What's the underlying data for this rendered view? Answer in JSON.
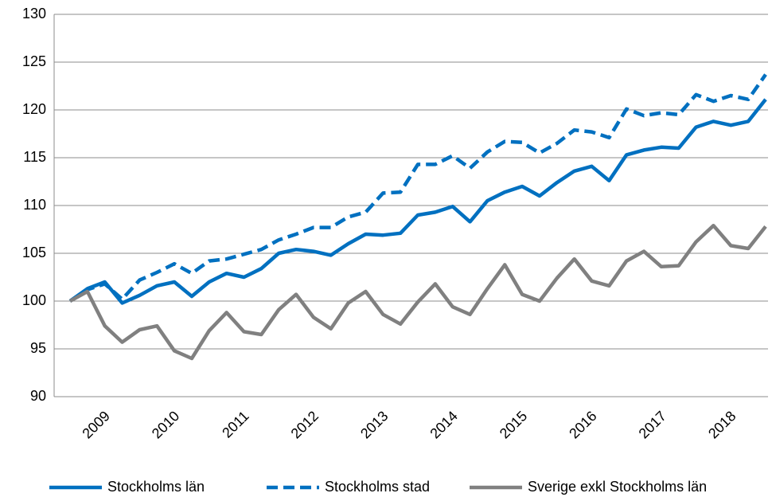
{
  "chart_data": {
    "type": "line",
    "categories": [
      null,
      null,
      "2009",
      null,
      null,
      null,
      "2010",
      null,
      null,
      null,
      "2011",
      null,
      null,
      null,
      "2012",
      null,
      null,
      null,
      "2013",
      null,
      null,
      null,
      "2014",
      null,
      null,
      null,
      "2015",
      null,
      null,
      null,
      "2016",
      null,
      null,
      null,
      "2017",
      null,
      null,
      null,
      "2018",
      null,
      null
    ],
    "series": [
      {
        "name": "Stockholms län",
        "color": "#0070c0",
        "dashed": false,
        "values": [
          100,
          101.3,
          102,
          99.8,
          100.6,
          101.6,
          102,
          100.5,
          102,
          102.9,
          102.5,
          103.4,
          105,
          105.4,
          105.2,
          104.8,
          106,
          107,
          106.9,
          107.1,
          109,
          109.3,
          109.9,
          108.3,
          110.5,
          111.4,
          112,
          111,
          112.4,
          113.6,
          114.1,
          112.6,
          115.3,
          115.8,
          116.1,
          116,
          118.2,
          118.8,
          118.4,
          118.8,
          121.1
        ]
      },
      {
        "name": "Stockholms stad",
        "color": "#0070c0",
        "dashed": true,
        "values": [
          100,
          101.2,
          101.8,
          100.2,
          102.2,
          103,
          103.9,
          102.9,
          104.2,
          104.4,
          104.9,
          105.4,
          106.4,
          107,
          107.7,
          107.7,
          108.8,
          109.3,
          111.3,
          111.4,
          114.3,
          114.3,
          115.2,
          113.9,
          115.6,
          116.7,
          116.6,
          115.5,
          116.5,
          117.9,
          117.7,
          117.1,
          120.1,
          119.4,
          119.7,
          119.5,
          121.6,
          120.9,
          121.5,
          121.1,
          123.7
        ]
      },
      {
        "name": "Sverige exkl Stockholms län",
        "color": "#808080",
        "dashed": false,
        "values": [
          100,
          101,
          97.4,
          95.7,
          97,
          97.4,
          94.8,
          94,
          96.9,
          98.8,
          96.8,
          96.5,
          99.1,
          100.7,
          98.3,
          97.1,
          99.8,
          101,
          98.6,
          97.6,
          99.9,
          101.8,
          99.4,
          98.6,
          101.3,
          103.8,
          100.7,
          100,
          102.4,
          104.4,
          102.1,
          101.6,
          104.2,
          105.2,
          103.6,
          103.7,
          106.2,
          107.9,
          105.8,
          105.5,
          107.8
        ]
      }
    ],
    "ylim": [
      90,
      130
    ],
    "yticks": [
      90,
      95,
      100,
      105,
      110,
      115,
      120,
      125,
      130
    ],
    "grid": true,
    "legend": "bottom"
  }
}
